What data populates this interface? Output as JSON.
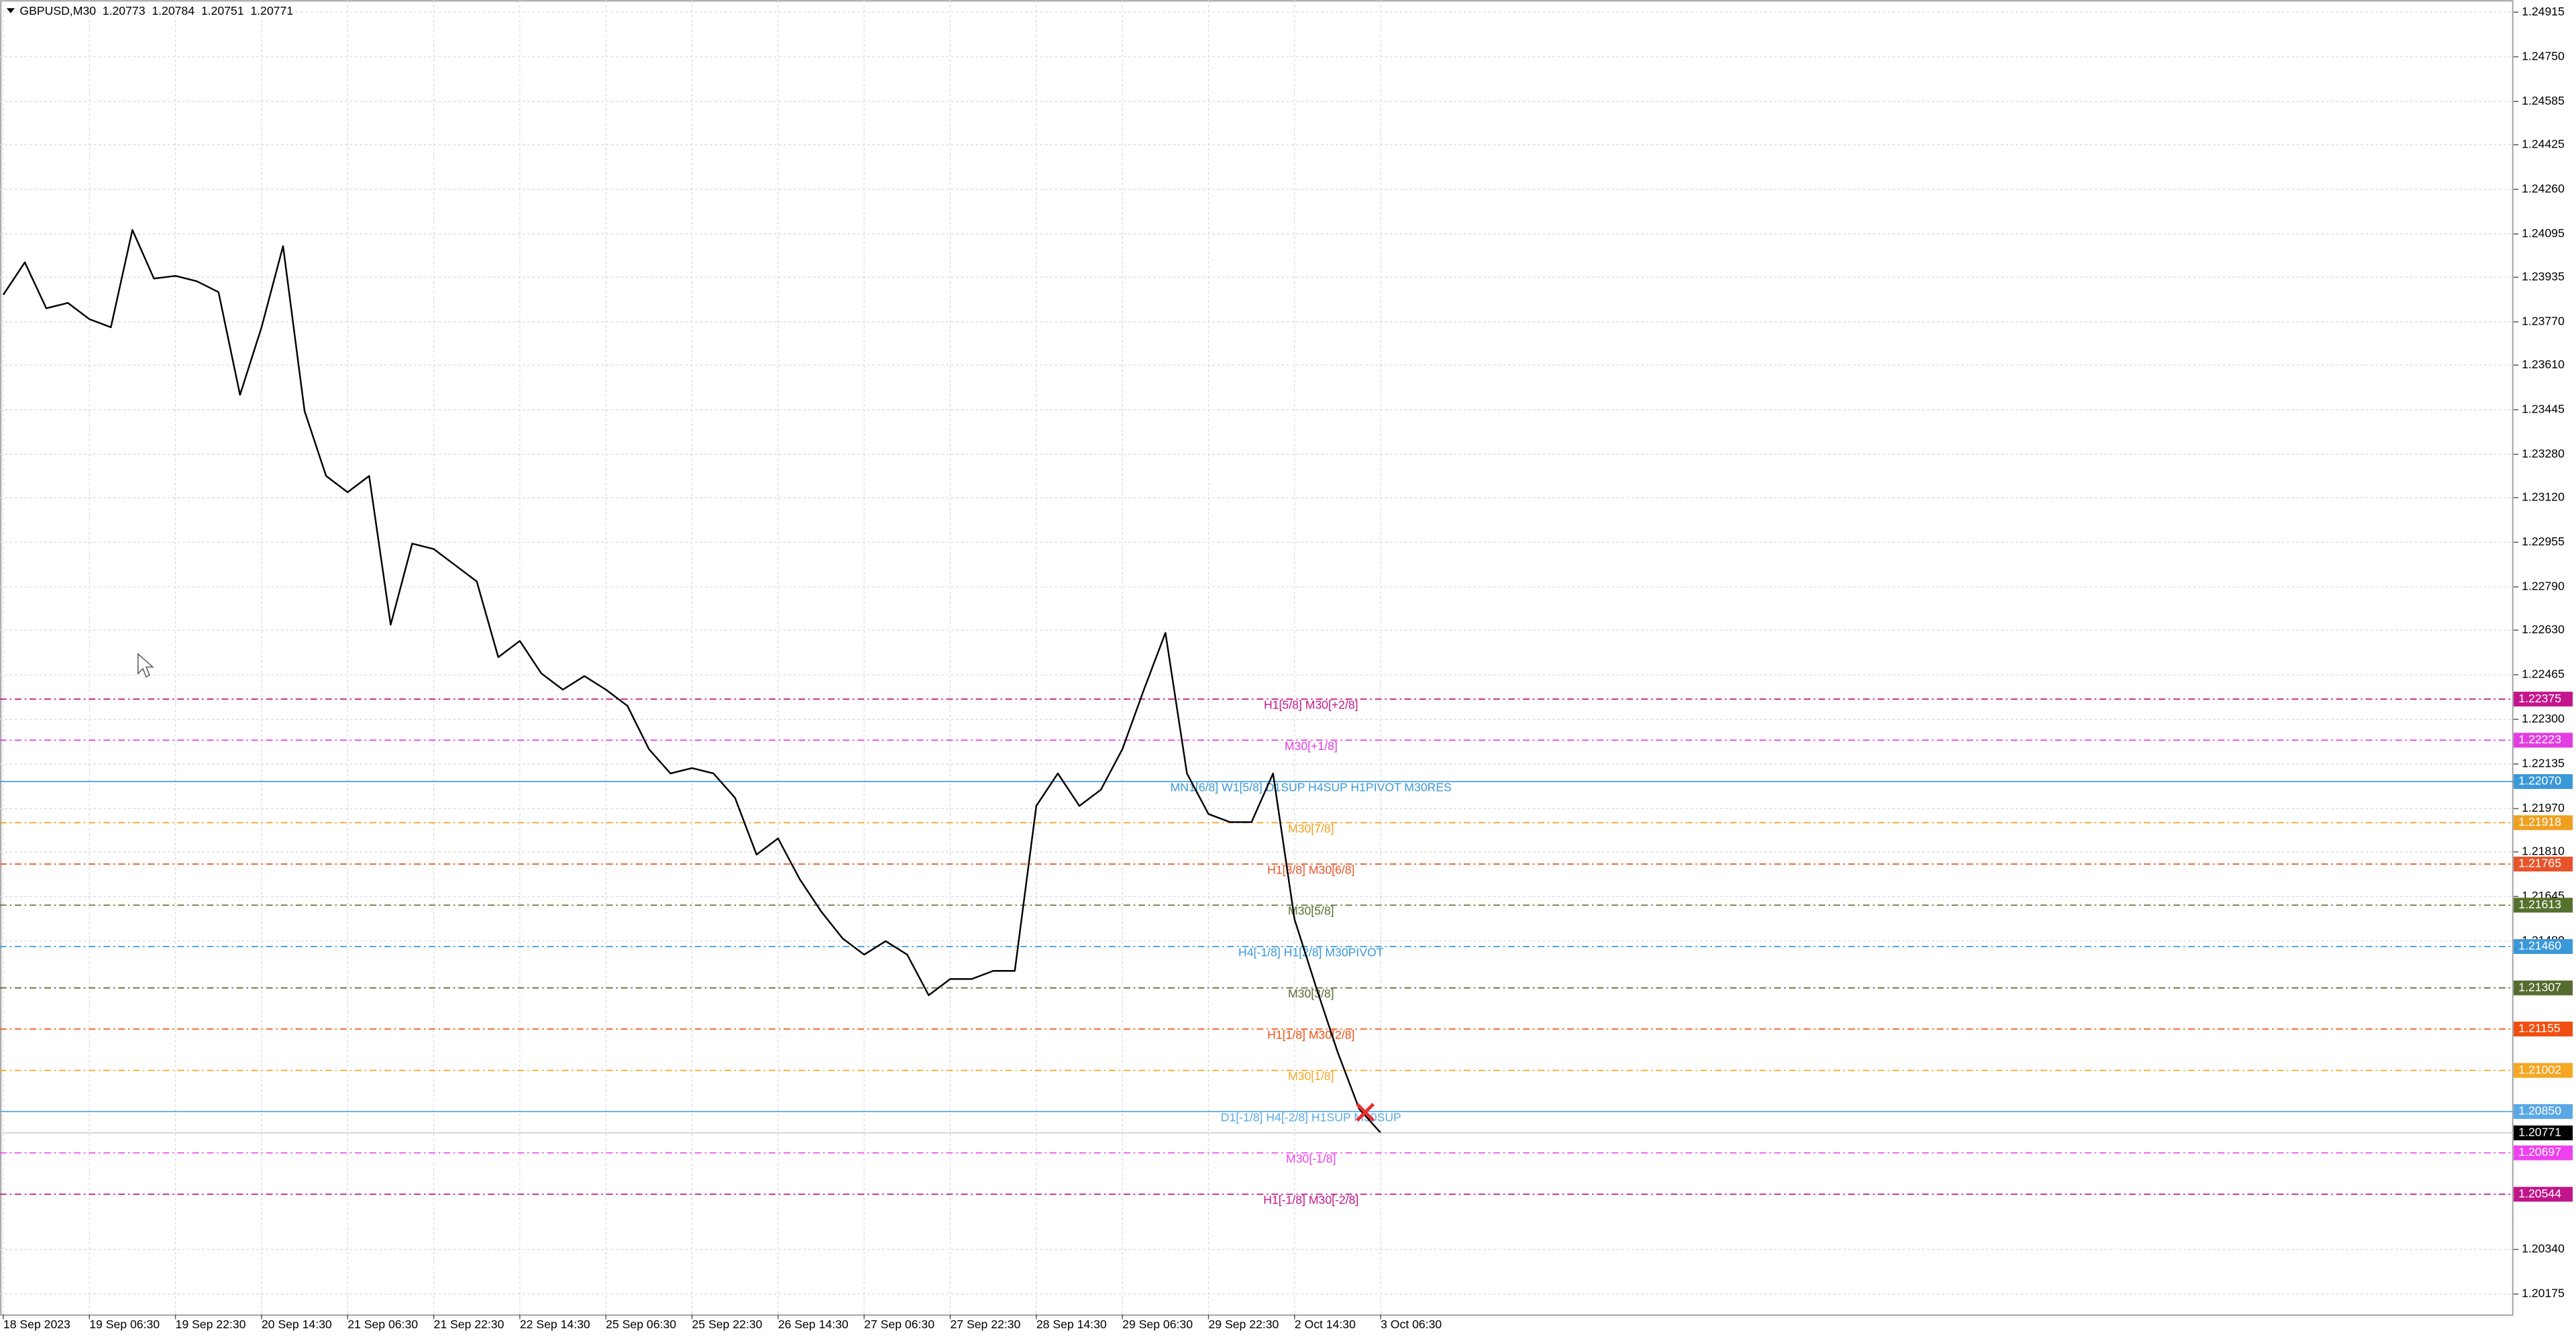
{
  "chart_data": {
    "type": "line",
    "title": "GBPUSD,M30",
    "ohlc": [
      1.20773,
      1.20784,
      1.20751,
      1.20771
    ],
    "categories": [
      "18 Sep 2023",
      null,
      null,
      null,
      "19 Sep 06:30",
      null,
      null,
      null,
      "19 Sep 22:30",
      null,
      null,
      null,
      "20 Sep 14:30",
      null,
      null,
      null,
      "21 Sep 06:30",
      null,
      null,
      null,
      "21 Sep 22:30",
      null,
      null,
      null,
      "22 Sep 14:30",
      null,
      null,
      null,
      "25 Sep 06:30",
      null,
      null,
      null,
      "25 Sep 22:30",
      null,
      null,
      null,
      "26 Sep 14:30",
      null,
      null,
      null,
      "27 Sep 06:30",
      null,
      null,
      null,
      "27 Sep 22:30",
      null,
      null,
      null,
      "28 Sep 14:30",
      null,
      null,
      null,
      "29 Sep 06:30",
      null,
      null,
      null,
      "29 Sep 22:30",
      null,
      null,
      null,
      "2 Oct 14:30",
      null,
      null,
      null,
      "3 Oct 06:30"
    ],
    "series": [
      {
        "name": "GBPUSD",
        "color": "#000000",
        "values": [
          1.2387,
          1.2399,
          1.2382,
          1.2384,
          1.2378,
          1.2375,
          1.2411,
          1.2393,
          1.2394,
          1.2392,
          1.2388,
          1.235,
          1.2375,
          1.2405,
          1.2344,
          1.232,
          1.2314,
          1.232,
          1.2265,
          1.2295,
          1.2293,
          1.2287,
          1.2281,
          1.2253,
          1.2259,
          1.2247,
          1.2241,
          1.2246,
          1.2241,
          1.2235,
          1.2219,
          1.221,
          1.2212,
          1.221,
          1.2201,
          1.218,
          1.2186,
          1.2171,
          1.2159,
          1.2149,
          1.2143,
          1.2148,
          1.2143,
          1.2128,
          1.2134,
          1.2134,
          1.2137,
          1.2137,
          1.2198,
          1.221,
          1.2198,
          1.2204,
          1.2219,
          1.2241,
          1.2262,
          1.221,
          1.2195,
          1.2192,
          1.2192,
          1.221,
          1.2156,
          1.2131,
          1.2107,
          1.2086,
          1.20771
        ]
      }
    ],
    "ylim": [
      1.201,
      1.2496
    ],
    "yticks": [
      1.24915,
      {
        "value": 1.2475,
        "label": "1.24750"
      },
      1.24585,
      1.24425,
      {
        "value": 1.2426,
        "label": "1.24260"
      },
      1.24095,
      1.23935,
      {
        "value": 1.2377,
        "label": "1.23770"
      },
      {
        "value": 1.2361,
        "label": "1.23610"
      },
      1.23445,
      {
        "value": 1.2328,
        "label": "1.23280"
      },
      {
        "value": 1.2312,
        "label": "1.23120"
      },
      1.22955,
      {
        "value": 1.2279,
        "label": "1.22790"
      },
      {
        "value": 1.2263,
        "label": "1.22630"
      },
      1.22465,
      {
        "value": 1.223,
        "label": "1.22300"
      },
      1.22135,
      {
        "value": 1.2197,
        "label": "1.21970"
      },
      {
        "value": 1.2181,
        "label": "1.21810"
      },
      1.21645,
      {
        "value": 1.2148,
        "label": "1.21480"
      },
      {
        "value": 1.2034,
        "label": "1.20340"
      },
      1.20175
    ],
    "grid": true,
    "levels": [
      {
        "name": "H1[5/8] M30[+2/8]",
        "price": {
          "value": 1.22375,
          "label": "1.22375"
        },
        "color": "#c4168c",
        "dash": true
      },
      {
        "name": "M30[+1/8]",
        "price": {
          "value": 1.22223,
          "label": "1.22223"
        },
        "color": "#e23ce2",
        "dash": true
      },
      {
        "name": "MN1[6/8] W1[5/8] D1SUP H4SUP H1PIVOT M30RES",
        "price": {
          "value": 1.2207,
          "label": "1.22070"
        },
        "color": "#3a98d8",
        "dash": false
      },
      {
        "name": "M30[7/8]",
        "price": {
          "value": 1.21918,
          "label": "1.21918"
        },
        "color": "#f0a020",
        "dash": true
      },
      {
        "name": "H1[3/8] M30[6/8]",
        "price": {
          "value": 1.21765,
          "label": "1.21765"
        },
        "color": "#e8542a",
        "dash": true
      },
      {
        "name": "M30[5/8]",
        "price": {
          "value": 1.21613,
          "label": "1.21613"
        },
        "color": "#55702c",
        "dash": true
      },
      {
        "name": "H4[-1/8] H1[2/8] M30PIVOT",
        "price": {
          "value": 1.2146,
          "label": "1.21460"
        },
        "color": "#3a98d8",
        "dash": true
      },
      {
        "name": "M30[3/8]",
        "price": {
          "value": 1.21307,
          "label": "1.21307"
        },
        "color": "#556b2f",
        "dash": true
      },
      {
        "name": "H1[1/8] M30[2/8]",
        "price": {
          "value": 1.21155,
          "label": "1.21155"
        },
        "color": "#f04e10",
        "dash": true
      },
      {
        "name": "M30[1/8]",
        "price": {
          "value": 1.21002,
          "label": "1.21002"
        },
        "color": "#f5a623",
        "dash": true
      },
      {
        "name": "D1[-1/8] H4[-2/8] H1SUP M30SUP",
        "price": {
          "value": 1.2085,
          "label": "1.20850"
        },
        "color": "#5aa9e6",
        "dash": false
      },
      {
        "name": "M30[-1/8]",
        "price": {
          "value": 1.20697,
          "label": "1.20697"
        },
        "color": "#ee40ee",
        "dash": true
      },
      {
        "name": "H1[-1/8] M30[-2/8]",
        "price": {
          "value": 1.20544,
          "label": "1.20544"
        },
        "color": "#c0168a",
        "dash": true
      }
    ],
    "last_price": {
      "value": 1.20771,
      "label": "1.20771"
    }
  }
}
